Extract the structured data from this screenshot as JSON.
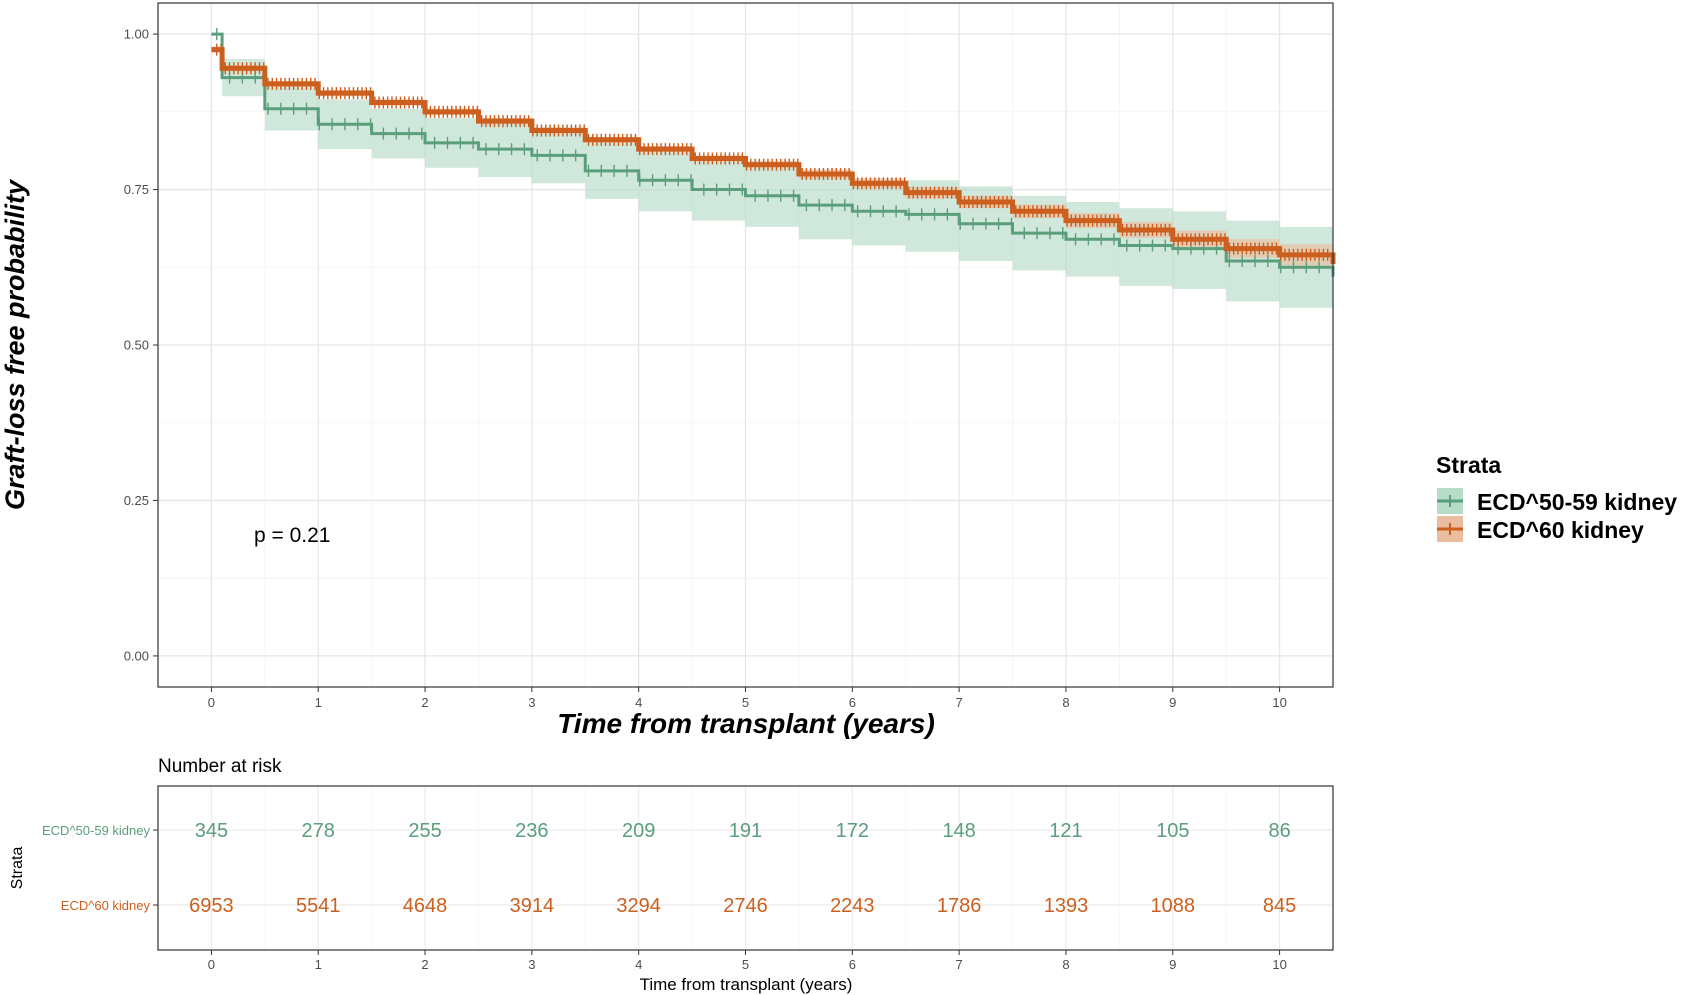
{
  "chart_data": [
    {
      "type": "line",
      "subtype": "kaplan-meier",
      "title": "",
      "xlabel": "Time from transplant (years)",
      "ylabel": "Graft-loss free probability",
      "xlim": [
        -0.5,
        10.5
      ],
      "ylim": [
        -0.05,
        1.05
      ],
      "x_ticks": [
        0,
        1,
        2,
        3,
        4,
        5,
        6,
        7,
        8,
        9,
        10
      ],
      "x_tick_labels": [
        "0",
        "1",
        "2",
        "3",
        "4",
        "5",
        "6",
        "7",
        "8",
        "9",
        "10"
      ],
      "y_ticks": [
        0,
        0.25,
        0.5,
        0.75,
        1.0
      ],
      "y_tick_labels": [
        "0.00",
        "0.25",
        "0.50",
        "0.75",
        "1.00"
      ],
      "grid": true,
      "annotation": "p = 0.21",
      "legend": {
        "title": "Strata",
        "position": "right",
        "entries": [
          "ECD^50-59 kidney",
          "ECD^60 kidney"
        ]
      },
      "series": [
        {
          "name": "ECD^50-59 kidney",
          "color": "#5a9e7c",
          "band_color": "#b7dcc8",
          "x": [
            0,
            0.1,
            0.5,
            1.0,
            1.5,
            2.0,
            2.5,
            3.0,
            3.5,
            4.0,
            4.5,
            5.0,
            5.5,
            6.0,
            6.5,
            7.0,
            7.5,
            8.0,
            8.5,
            9.0,
            9.5,
            10.0,
            10.5
          ],
          "y": [
            1.0,
            0.93,
            0.88,
            0.855,
            0.84,
            0.825,
            0.815,
            0.805,
            0.78,
            0.765,
            0.75,
            0.74,
            0.725,
            0.715,
            0.71,
            0.695,
            0.68,
            0.67,
            0.66,
            0.655,
            0.635,
            0.625,
            0.61
          ],
          "lower": [
            1.0,
            0.9,
            0.845,
            0.815,
            0.8,
            0.785,
            0.77,
            0.76,
            0.735,
            0.715,
            0.7,
            0.69,
            0.67,
            0.66,
            0.65,
            0.635,
            0.62,
            0.61,
            0.595,
            0.59,
            0.57,
            0.56,
            0.55
          ],
          "upper": [
            1.0,
            0.96,
            0.915,
            0.895,
            0.88,
            0.865,
            0.86,
            0.85,
            0.825,
            0.81,
            0.795,
            0.79,
            0.775,
            0.765,
            0.765,
            0.755,
            0.74,
            0.73,
            0.72,
            0.715,
            0.7,
            0.69,
            0.67
          ]
        },
        {
          "name": "ECD^60 kidney",
          "color": "#cc5f1e",
          "band_color": "#ebbd9f",
          "x": [
            0,
            0.1,
            0.5,
            1.0,
            1.5,
            2.0,
            2.5,
            3.0,
            3.5,
            4.0,
            4.5,
            5.0,
            5.5,
            6.0,
            6.5,
            7.0,
            7.5,
            8.0,
            8.5,
            9.0,
            9.5,
            10.0,
            10.5
          ],
          "y": [
            0.975,
            0.945,
            0.92,
            0.905,
            0.89,
            0.875,
            0.86,
            0.845,
            0.83,
            0.815,
            0.8,
            0.79,
            0.775,
            0.76,
            0.745,
            0.73,
            0.715,
            0.7,
            0.685,
            0.67,
            0.655,
            0.645,
            0.63
          ],
          "lower": [
            0.97,
            0.94,
            0.915,
            0.9,
            0.885,
            0.87,
            0.855,
            0.84,
            0.825,
            0.81,
            0.795,
            0.784,
            0.768,
            0.752,
            0.736,
            0.72,
            0.704,
            0.688,
            0.672,
            0.656,
            0.64,
            0.628,
            0.612
          ],
          "upper": [
            0.98,
            0.95,
            0.925,
            0.91,
            0.895,
            0.88,
            0.865,
            0.85,
            0.835,
            0.82,
            0.805,
            0.796,
            0.782,
            0.768,
            0.754,
            0.74,
            0.726,
            0.712,
            0.698,
            0.684,
            0.67,
            0.662,
            0.648
          ]
        }
      ]
    },
    {
      "type": "table",
      "title": "Number at risk",
      "xlabel": "Time from transplant (years)",
      "ylabel": "Strata",
      "x_ticks": [
        0,
        1,
        2,
        3,
        4,
        5,
        6,
        7,
        8,
        9,
        10
      ],
      "x_tick_labels": [
        "0",
        "1",
        "2",
        "3",
        "4",
        "5",
        "6",
        "7",
        "8",
        "9",
        "10"
      ],
      "rows": [
        {
          "label": "ECD^50-59 kidney",
          "color": "#5a9e7c",
          "values": [
            "345",
            "278",
            "255",
            "236",
            "209",
            "191",
            "172",
            "148",
            "121",
            "105",
            "86"
          ]
        },
        {
          "label": "ECD^60 kidney",
          "color": "#cc5f1e",
          "values": [
            "6953",
            "5541",
            "4648",
            "3914",
            "3294",
            "2746",
            "2243",
            "1786",
            "1393",
            "1088",
            "845"
          ]
        }
      ]
    }
  ]
}
